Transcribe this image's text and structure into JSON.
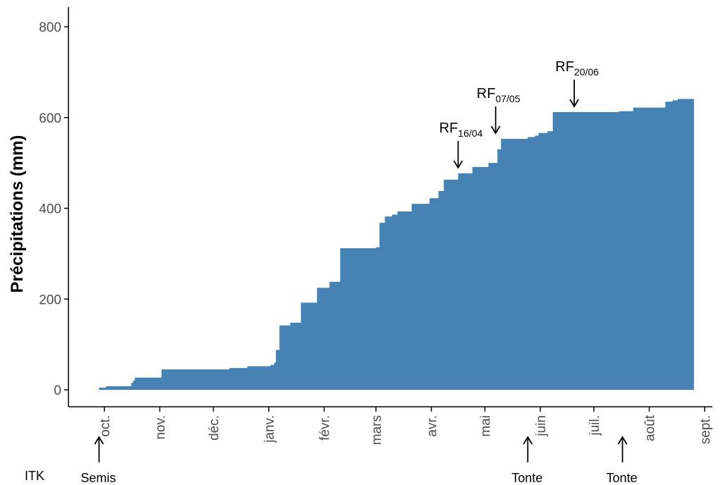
{
  "chart_data": {
    "type": "area",
    "title": "",
    "xlabel": "",
    "ylabel": "Précipitations (mm)",
    "color": "#4682b4",
    "grid": false,
    "legend": "none",
    "ylim": [
      0,
      800
    ],
    "yticks": [
      0,
      200,
      400,
      600,
      800
    ],
    "xlim": [
      "2019-09-20",
      "2020-09-01"
    ],
    "xticks": [
      {
        "date": "2019-10-01",
        "label": "oct."
      },
      {
        "date": "2019-11-01",
        "label": "nov."
      },
      {
        "date": "2019-12-01",
        "label": "déc."
      },
      {
        "date": "2020-01-01",
        "label": "janv."
      },
      {
        "date": "2020-02-01",
        "label": "févr."
      },
      {
        "date": "2020-03-01",
        "label": "mars"
      },
      {
        "date": "2020-04-01",
        "label": "avr."
      },
      {
        "date": "2020-05-01",
        "label": "mai"
      },
      {
        "date": "2020-06-01",
        "label": "juin"
      },
      {
        "date": "2020-07-01",
        "label": "juil."
      },
      {
        "date": "2020-08-01",
        "label": "août"
      },
      {
        "date": "2020-09-01",
        "label": "sept."
      }
    ],
    "series": [
      {
        "x": [
          "2019-09-26",
          "2019-09-28",
          "2019-10-02",
          "2019-10-03",
          "2019-10-13",
          "2019-10-16",
          "2019-10-17",
          "2019-10-18",
          "2019-10-31",
          "2019-11-02",
          "2019-11-30",
          "2019-12-10",
          "2019-12-12",
          "2019-12-20",
          "2019-12-31",
          "2020-01-02",
          "2020-01-04",
          "2020-01-05",
          "2020-01-07",
          "2020-01-13",
          "2020-01-19",
          "2020-01-26",
          "2020-01-28",
          "2020-02-02",
          "2020-02-04",
          "2020-02-10",
          "2020-02-27",
          "2020-02-29",
          "2020-03-01",
          "2020-03-03",
          "2020-03-06",
          "2020-03-10",
          "2020-03-13",
          "2020-03-21",
          "2020-03-31",
          "2020-04-02",
          "2020-04-05",
          "2020-04-08",
          "2020-04-16",
          "2020-04-18",
          "2020-04-24",
          "2020-05-03",
          "2020-05-08",
          "2020-05-10",
          "2020-05-20",
          "2020-05-25",
          "2020-05-29",
          "2020-05-31",
          "2020-06-05",
          "2020-06-08",
          "2020-06-30",
          "2020-07-15",
          "2020-07-23",
          "2020-08-01",
          "2020-08-10",
          "2020-08-14",
          "2020-08-17",
          "2020-08-25"
        ],
        "y": [
          0,
          5,
          8,
          8,
          8,
          15,
          20,
          27,
          27,
          45,
          45,
          48,
          48,
          52,
          52,
          55,
          60,
          88,
          142,
          148,
          192,
          192,
          225,
          225,
          238,
          312,
          312,
          312,
          314,
          368,
          382,
          386,
          393,
          410,
          422,
          422,
          438,
          463,
          477,
          477,
          491,
          500,
          530,
          553,
          553,
          557,
          560,
          566,
          570,
          612,
          612,
          614,
          622,
          622,
          635,
          638,
          641,
          641
        ]
      }
    ],
    "annotations": [
      {
        "label": "RF",
        "sub": "16/04",
        "date": "2020-04-16",
        "y": 477
      },
      {
        "label": "RF",
        "sub": "07/05",
        "date": "2020-05-07",
        "y": 553
      },
      {
        "label": "RF",
        "sub": "20/06",
        "date": "2020-06-20",
        "y": 612
      }
    ],
    "itk": {
      "label": "ITK",
      "events": [
        {
          "label": "Semis",
          "date": "2019-09-28"
        },
        {
          "label": "Tonte",
          "date": "2020-05-25"
        },
        {
          "label": "Tonte",
          "date": "2020-07-17"
        }
      ]
    }
  }
}
